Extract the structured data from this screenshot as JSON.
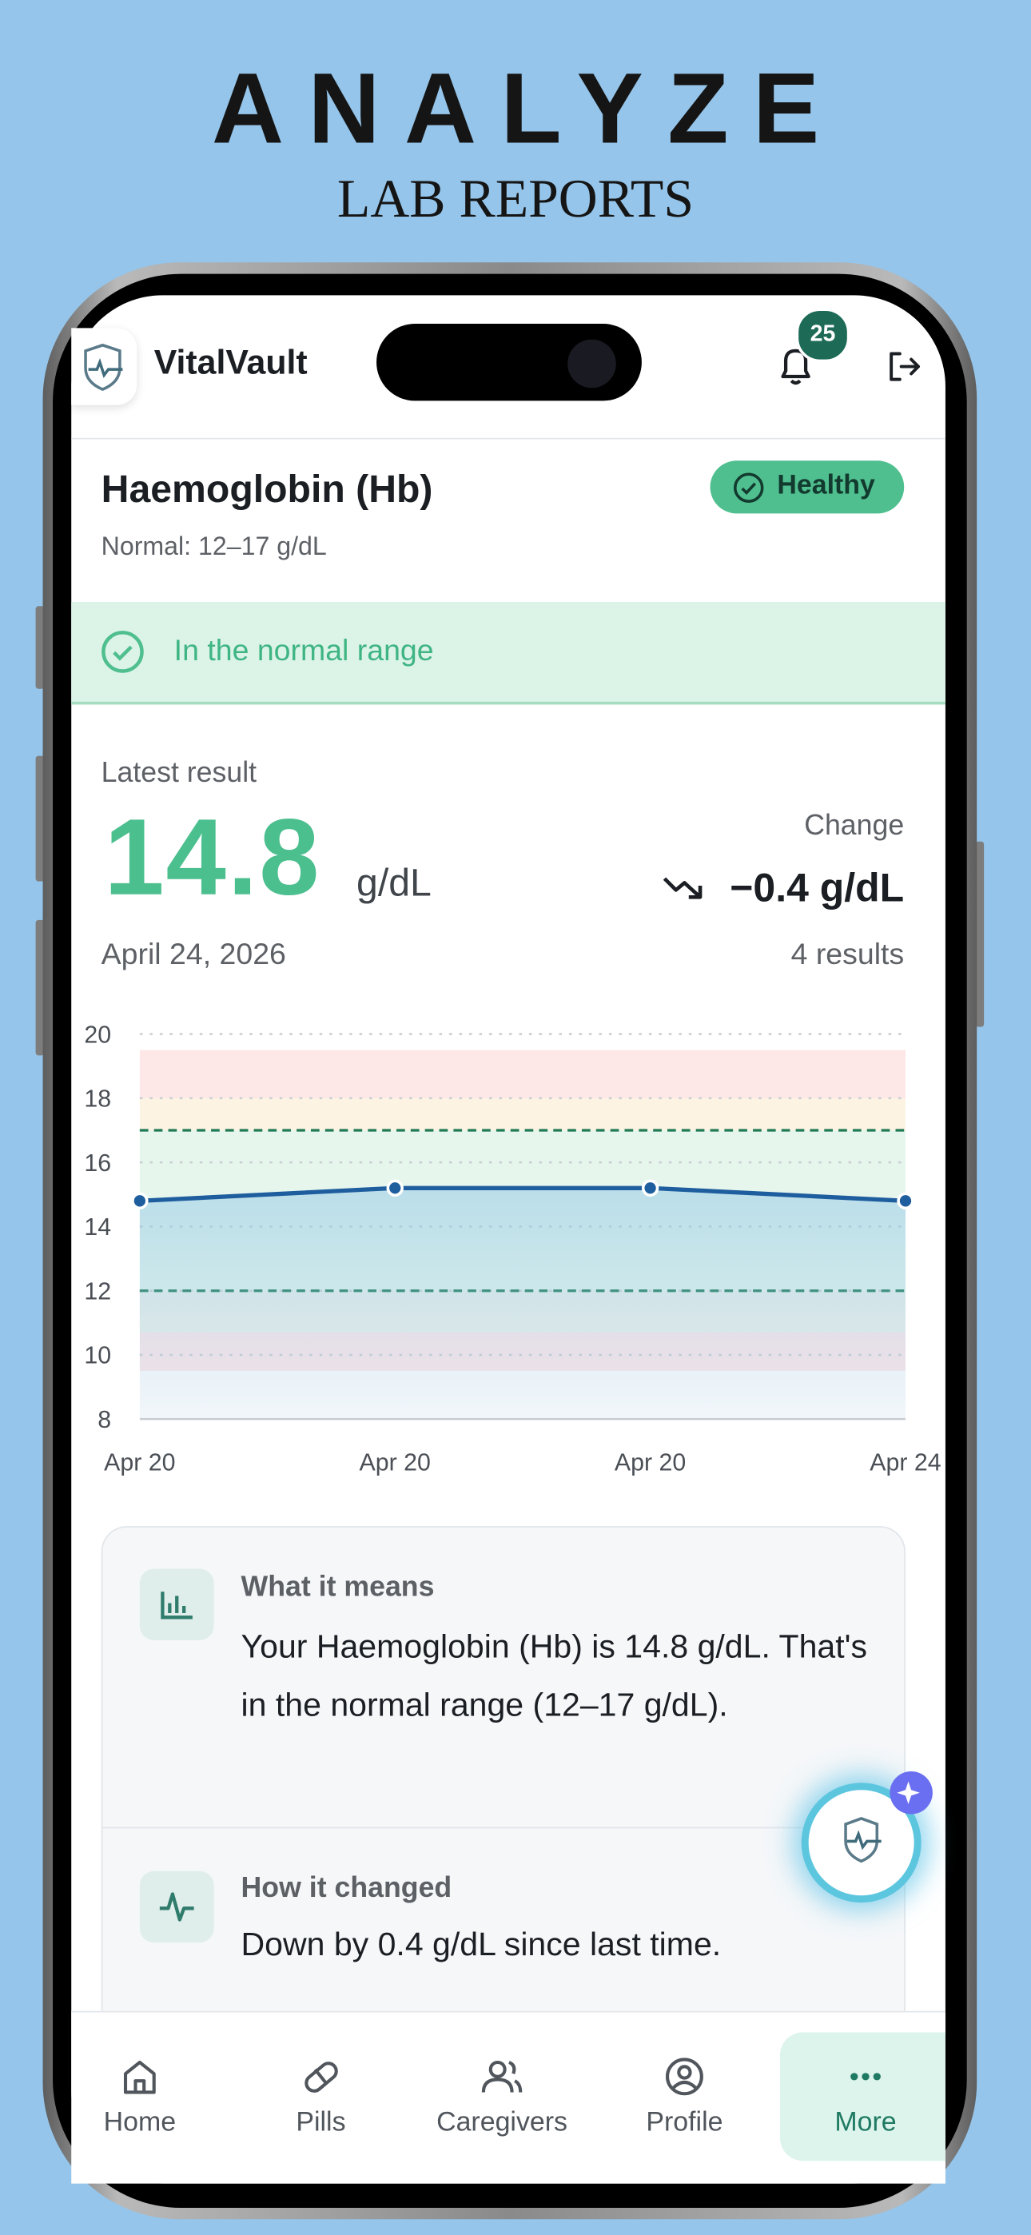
{
  "banner": {
    "title": "ANALYZE",
    "subtitle": "LAB REPORTS"
  },
  "app_bar": {
    "app_name": "VitalVault",
    "notification_count": 25
  },
  "test": {
    "name": "Haemoglobin (Hb)",
    "status": "Healthy",
    "normal_range": "Normal: 12–17 g/dL",
    "range_message": "In the normal range"
  },
  "latest": {
    "label": "Latest result",
    "value": 14.8,
    "unit": "g/dL",
    "date": "April 24, 2026",
    "change_label": "Change",
    "change": "−0.4 g/dL",
    "results_count": "4 results"
  },
  "chart_data": {
    "type": "line",
    "categories": [
      "Apr 20",
      "Apr 20",
      "Apr 20",
      "Apr 24"
    ],
    "series": [
      {
        "values": [
          14.8,
          15.2,
          15.2,
          14.8
        ],
        "color": "#1e5e9e"
      }
    ],
    "ylim": [
      8,
      20
    ],
    "yticks": [
      8,
      10,
      12,
      14,
      16,
      18,
      20
    ],
    "grid": true,
    "reference_lines": [
      12,
      17
    ],
    "zones": [
      {
        "from": 18,
        "to": 19.5,
        "color": "#fde7e7"
      },
      {
        "from": 17,
        "to": 18,
        "color": "#fdf3e2"
      },
      {
        "from": 12,
        "to": 17,
        "color": "#e7f6ed"
      },
      {
        "from": 10.7,
        "to": 12,
        "color": "#edf0ea"
      },
      {
        "from": 9.5,
        "to": 10.7,
        "color": "#fbe6e9"
      },
      {
        "from": 8,
        "to": 9.5,
        "color": "#f7f9fb"
      }
    ]
  },
  "insights": [
    {
      "title": "What it means",
      "text": "Your Haemoglobin (Hb) is 14.8 g/dL. That's in the normal range (12–17 g/dL)."
    },
    {
      "title": "How it changed",
      "text": "Down by 0.4 g/dL since last time."
    }
  ],
  "nav": [
    "Home",
    "Pills",
    "Caregivers",
    "Profile",
    "More"
  ]
}
